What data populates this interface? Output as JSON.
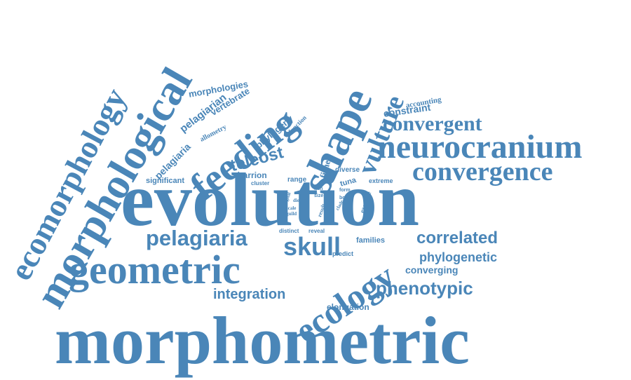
{
  "cloud": {
    "color": "#4a86b8",
    "words": {
      "morphometric": "morphometric",
      "evolution": "evolution",
      "geometric": "geometric",
      "ecology": "ecology",
      "shape": "shape",
      "feeding": "feeding",
      "morphological": "morphological",
      "ecomorphology": "ecomorphology",
      "neurocranium": "neurocranium",
      "convergence": "convergence",
      "convergent": "convergent",
      "vulture": "vulture",
      "constraint": "constraint",
      "accounting": "accounting",
      "pelagiaria_large": "pelagiaria",
      "skull": "skull",
      "correlated": "correlated",
      "phylogenetic": "phylogenetic",
      "converging": "converging",
      "phenotypic": "phenotypic",
      "integration": "integration",
      "elongation": "elongation",
      "teleost": "teleost",
      "carrion": "carrion",
      "cluster": "cluster",
      "range": "range",
      "fishes": "fishes",
      "diverse": "diverse",
      "tuna": "tuna",
      "extreme": "extreme",
      "significant": "significant",
      "morphologies": "morphologies",
      "vertebrate": "vertebrate",
      "pelagiarian": "pelagiarian",
      "allometry": "allometry",
      "phylogeny": "phylogeny",
      "function": "function",
      "pelagiaria_small": "pelagiaria",
      "distinct": "distinct",
      "reveal": "reveal",
      "families": "families",
      "predict": "predict",
      "fish": "fish",
      "size": "size",
      "body": "body",
      "form": "form",
      "signal": "signal",
      "result": "result",
      "scale": "scale",
      "example": "example",
      "guild": "guild",
      "diet": "diet",
      "clade": "clade"
    }
  }
}
